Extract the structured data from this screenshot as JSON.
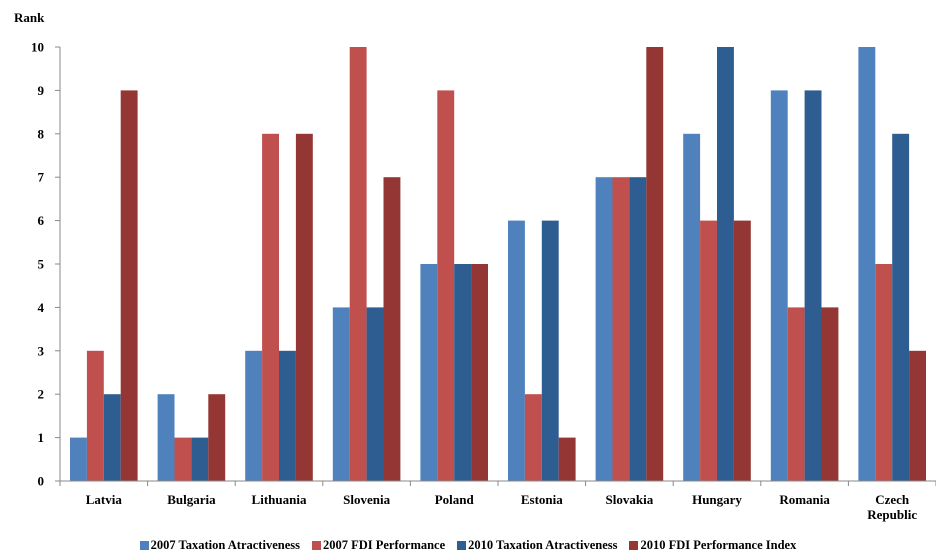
{
  "chart_data": {
    "type": "bar",
    "ylabel": "Rank",
    "xlabel": "",
    "ylim": [
      0,
      10
    ],
    "yticks": [
      "0",
      "1",
      "2",
      "3",
      "4",
      "5",
      "6",
      "7",
      "8",
      "9",
      "10"
    ],
    "grid": false,
    "legend_position": "bottom",
    "categories": [
      "Latvia",
      "Bulgaria",
      "Lithuania",
      "Slovenia",
      "Poland",
      "Estonia",
      "Slovakia",
      "Hungary",
      "Romania",
      "Czech Republic"
    ],
    "series": [
      {
        "name": "2007 Taxation Atractiveness",
        "color": "#4F81BD",
        "values": [
          1,
          2,
          3,
          4,
          5,
          6,
          7,
          8,
          9,
          10
        ]
      },
      {
        "name": "2007 FDI Performance",
        "color": "#C0504D",
        "values": [
          3,
          1,
          8,
          10,
          9,
          2,
          7,
          6,
          4,
          5
        ]
      },
      {
        "name": "2010 Taxation Atractiveness",
        "color": "#2E5D91",
        "values": [
          2,
          1,
          3,
          4,
          5,
          6,
          7,
          10,
          9,
          8
        ]
      },
      {
        "name": "2010 FDI Performance Index",
        "color": "#943634",
        "values": [
          9,
          2,
          8,
          7,
          5,
          1,
          10,
          6,
          4,
          3
        ]
      }
    ]
  }
}
